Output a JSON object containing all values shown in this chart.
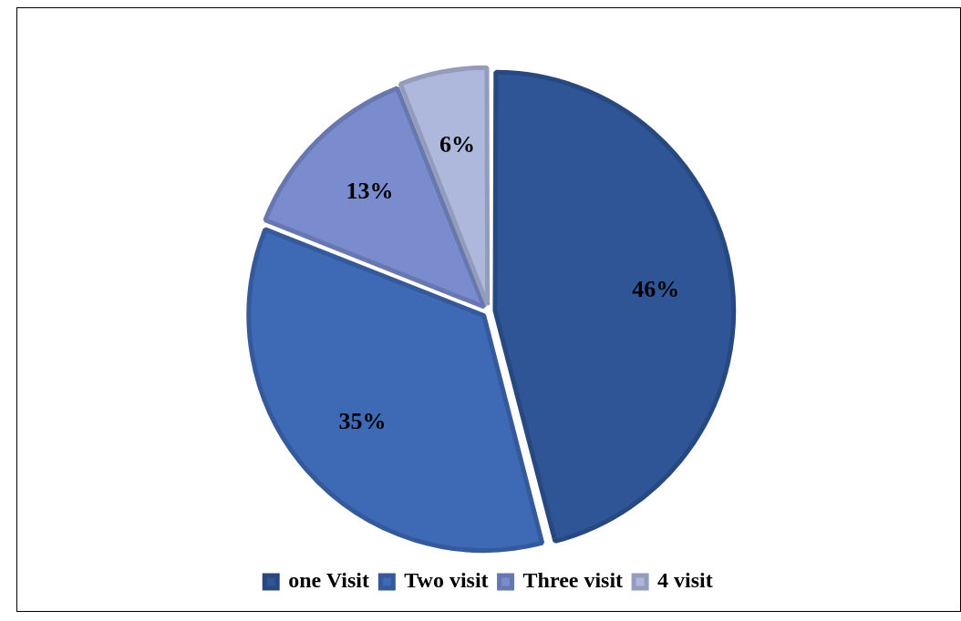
{
  "chart_data": {
    "type": "pie",
    "categories": [
      "one Visit",
      "Two visit",
      "Three visit",
      "4 visit"
    ],
    "values": [
      46,
      35,
      13,
      6
    ],
    "value_labels": [
      "46%",
      "35%",
      "13%",
      "6%"
    ],
    "colors": [
      "#2f5597",
      "#3e69b5",
      "#7a8cce",
      "#aeb8dc"
    ],
    "legend": "bottom"
  }
}
